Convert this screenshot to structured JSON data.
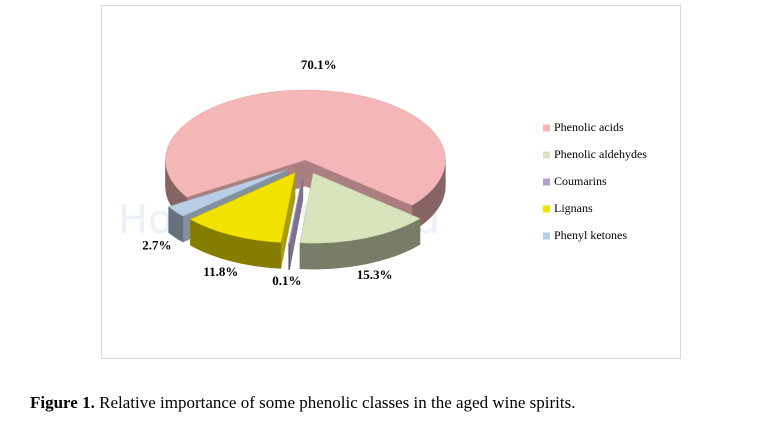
{
  "chart_data": {
    "type": "pie",
    "categories": [
      "Phenolic acids",
      "Phenolic aldehydes",
      "Coumarins",
      "Lignans",
      "Phenyl ketones"
    ],
    "values": [
      70.1,
      15.3,
      0.1,
      11.8,
      2.7
    ],
    "value_labels": [
      "70.1%",
      "15.3%",
      "0.1%",
      "11.8%",
      "2.7%"
    ],
    "colors": [
      "#f4b6b6",
      "#d8e4bc",
      "#b3a2c7",
      "#f2e200",
      "#b9cde5"
    ],
    "legend": "right",
    "watermark": "HomeDistiller.ru"
  },
  "caption": {
    "label": "Figure 1.",
    "text": "Relative importance of some phenolic classes in the aged wine spirits."
  }
}
